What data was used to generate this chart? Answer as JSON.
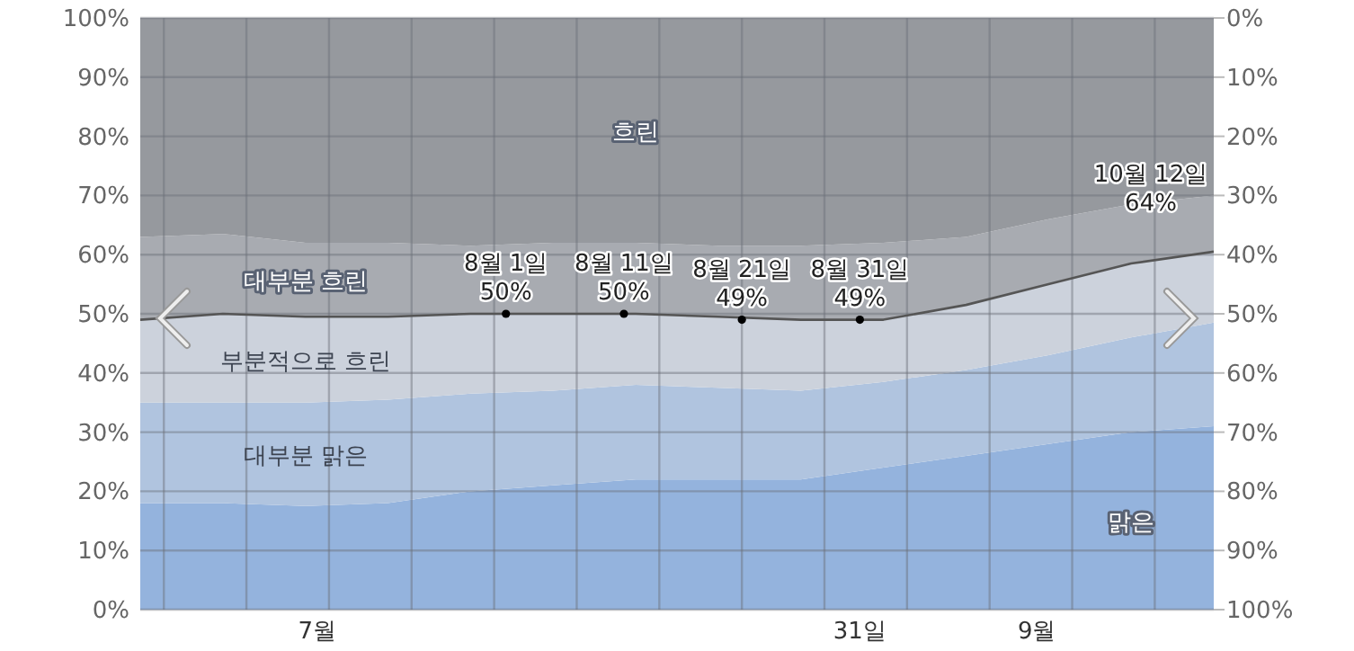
{
  "chart_data": {
    "type": "area",
    "stacked": true,
    "x": [
      "--07-01",
      "--07-08",
      "--07-15",
      "--07-22",
      "--07-29",
      "--08-05",
      "--08-12",
      "--08-19",
      "--08-26",
      "--09-02",
      "--09-09",
      "--09-16",
      "--09-23",
      "--09-30"
    ],
    "series": [
      {
        "name": "맑은",
        "color": "#94b3dd",
        "values": [
          18,
          18,
          17.5,
          18,
          20,
          21,
          22,
          22,
          22,
          24,
          26,
          28,
          30,
          31
        ]
      },
      {
        "name": "대부분 맑은",
        "color": "#b0c4df",
        "values": [
          17,
          17,
          17.5,
          17.5,
          16.5,
          16,
          16,
          15.5,
          15,
          14.5,
          14.5,
          15,
          16,
          17.5
        ]
      },
      {
        "name": "부분적으로 흐린",
        "color": "#ccd2dc",
        "values": [
          14,
          15,
          14.5,
          14,
          13.5,
          13,
          12,
          12,
          12,
          10.5,
          11,
          12,
          12.5,
          12
        ]
      },
      {
        "name": "대부분 흐린",
        "color": "#a8abb1",
        "values": [
          14,
          13.5,
          12.5,
          12.5,
          11.5,
          12,
          12,
          12,
          12.5,
          13,
          11.5,
          11,
          10,
          9.5
        ]
      },
      {
        "name": "흐린",
        "color": "#96999e",
        "values": [
          37,
          36.5,
          38,
          38,
          38.5,
          38,
          38,
          38.5,
          38.5,
          38,
          37,
          34,
          31.5,
          30
        ]
      }
    ],
    "xlim": [
      "--07-01",
      "--09-30"
    ],
    "xticks": [
      {
        "value": "--07-03",
        "label": null
      },
      {
        "value": "--07-10",
        "label": null
      },
      {
        "value": "--07-16",
        "label": "7월"
      },
      {
        "value": "--07-17",
        "label": null
      },
      {
        "value": "--07-24",
        "label": null
      },
      {
        "value": "--07-31",
        "label": null
      },
      {
        "value": "--08-07",
        "label": null
      },
      {
        "value": "--08-14",
        "label": null
      },
      {
        "value": "--08-21",
        "label": null
      },
      {
        "value": "--08-28",
        "label": null
      },
      {
        "value": "--08-31",
        "label": "31일"
      },
      {
        "value": "--09-04",
        "label": null
      },
      {
        "value": "--09-11",
        "label": null
      },
      {
        "value": "--09-15",
        "label": "9월"
      },
      {
        "value": "--09-18",
        "label": null
      },
      {
        "value": "--09-25",
        "label": null
      }
    ],
    "ylim": [
      0,
      100
    ],
    "yticks": [
      {
        "value": 0,
        "label": "0%"
      },
      {
        "value": 10,
        "label": "10%"
      },
      {
        "value": 20,
        "label": "20%"
      },
      {
        "value": 30,
        "label": "30%"
      },
      {
        "value": 40,
        "label": "40%"
      },
      {
        "value": 50,
        "label": "50%"
      },
      {
        "value": 60,
        "label": "60%"
      },
      {
        "value": 70,
        "label": "70%"
      },
      {
        "value": 80,
        "label": "80%"
      },
      {
        "value": 90,
        "label": "90%"
      },
      {
        "value": 100,
        "label": "100%"
      }
    ],
    "y2lim": [
      100,
      0
    ],
    "y2ticks": [
      {
        "value": 0,
        "label": "0%"
      },
      {
        "value": 10,
        "label": "10%"
      },
      {
        "value": 20,
        "label": "20%"
      },
      {
        "value": 30,
        "label": "30%"
      },
      {
        "value": 40,
        "label": "40%"
      },
      {
        "value": 50,
        "label": "50%"
      },
      {
        "value": 60,
        "label": "60%"
      },
      {
        "value": 70,
        "label": "70%"
      },
      {
        "value": 80,
        "label": "80%"
      },
      {
        "value": 90,
        "label": "90%"
      },
      {
        "value": 100,
        "label": "100%"
      }
    ],
    "grid": true,
    "annotations": [
      {
        "text": "8월 1일 50%",
        "x": "--08-01",
        "y": 50
      },
      {
        "text": "8월 11일 50%",
        "x": "--08-11",
        "y": 50
      },
      {
        "text": "8월 21일 49%",
        "x": "--08-21",
        "y": 49
      },
      {
        "text": "8월 31일 49%",
        "x": "--08-31",
        "y": 49
      },
      "10월 12일 64%"
    ]
  }
}
